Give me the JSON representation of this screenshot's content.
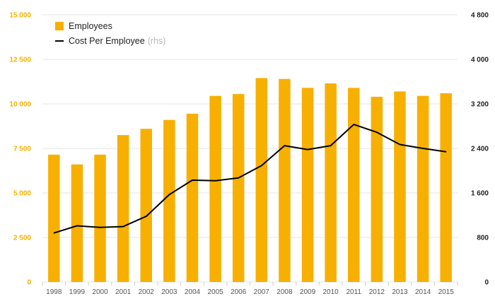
{
  "colors": {
    "bar": "#f7b000",
    "line": "#000000",
    "left_axis_text": "#f7b000",
    "grid": "#e6e6e6"
  },
  "legend": {
    "employees_label": "Employees",
    "cost_label": "Cost Per Employee",
    "cost_suffix": "(rhs)"
  },
  "chart_data": {
    "type": "bar",
    "title": "",
    "xlabel": "",
    "ylabel": "",
    "legend_position": "top-left",
    "grid": true,
    "categories": [
      "1998",
      "1999",
      "2000",
      "2001",
      "2002",
      "2003",
      "2004",
      "2005",
      "2006",
      "2007",
      "2008",
      "2009",
      "2010",
      "2011",
      "2012",
      "2013",
      "2014",
      "2015"
    ],
    "series": [
      {
        "name": "Employees",
        "type": "bar",
        "axis": "left",
        "values": [
          7150,
          6600,
          7150,
          8250,
          8600,
          9100,
          9450,
          10450,
          10550,
          11450,
          11400,
          10900,
          11150,
          10900,
          10400,
          10700,
          10450,
          10600
        ]
      },
      {
        "name": "Cost Per Employee",
        "type": "line",
        "axis": "right",
        "values": [
          880,
          1010,
          980,
          995,
          1180,
          1570,
          1830,
          1820,
          1870,
          2090,
          2450,
          2380,
          2450,
          2830,
          2690,
          2470,
          2400,
          2340
        ]
      }
    ],
    "y_left": {
      "range": [
        0,
        15000
      ],
      "ticks": [
        "0",
        "2 500",
        "5 000",
        "7 500",
        "10 000",
        "12 500",
        "15 000"
      ],
      "tick_values": [
        0,
        2500,
        5000,
        7500,
        10000,
        12500,
        15000
      ]
    },
    "y_right": {
      "range": [
        0,
        4800
      ],
      "ticks": [
        "0",
        "800",
        "1 600",
        "2 400",
        "3 200",
        "4 000",
        "4 800"
      ],
      "tick_values": [
        0,
        800,
        1600,
        2400,
        3200,
        4000,
        4800
      ]
    }
  }
}
